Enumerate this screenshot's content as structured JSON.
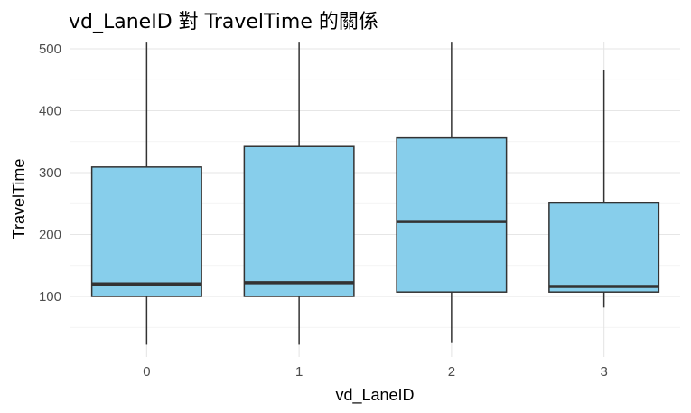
{
  "chart_data": {
    "type": "boxplot",
    "title": "vd_LaneID 對 TravelTime 的關係",
    "xlabel": "vd_LaneID",
    "ylabel": "TravelTime",
    "categories": [
      "0",
      "1",
      "2",
      "3"
    ],
    "ylim": [
      10,
      510
    ],
    "yticks": [
      100,
      200,
      300,
      400,
      500
    ],
    "grid": true,
    "box_color": "#87ceeb",
    "line_color": "#333333",
    "boxes": [
      {
        "category": "0",
        "whisker_low": 22,
        "q1": 100,
        "median": 120,
        "q3": 309,
        "whisker_high": 510
      },
      {
        "category": "1",
        "whisker_low": 22,
        "q1": 100,
        "median": 122,
        "q3": 342,
        "whisker_high": 510
      },
      {
        "category": "2",
        "whisker_low": 26,
        "q1": 107,
        "median": 221,
        "q3": 356,
        "whisker_high": 510
      },
      {
        "category": "3",
        "whisker_low": 82,
        "q1": 107,
        "median": 116,
        "q3": 251,
        "whisker_high": 466
      }
    ]
  }
}
